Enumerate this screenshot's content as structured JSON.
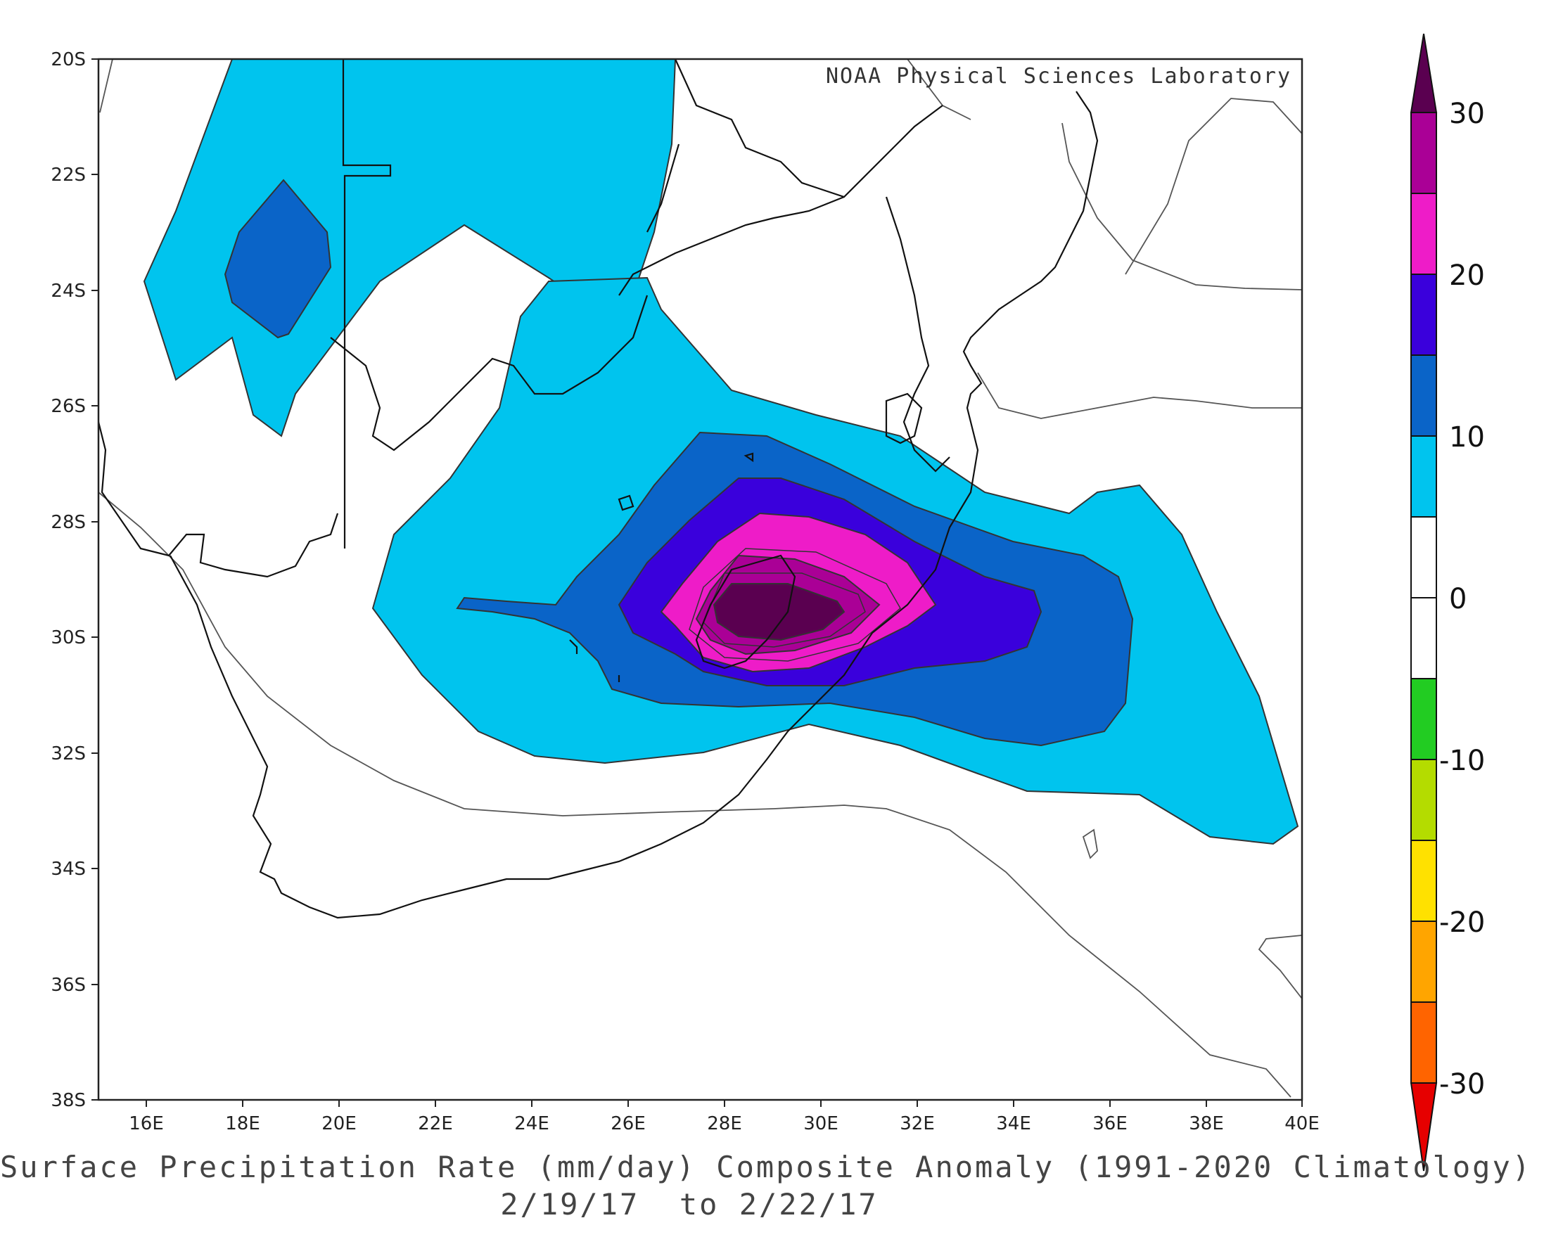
{
  "credit": "NOAA Physical Sciences Laboratory",
  "caption": {
    "line1": "Surface Precipitation Rate (mm/day) Composite Anomaly (1991-2020 Climatology)",
    "line2": "2/19/17  to 2/22/17"
  },
  "axes": {
    "lat_labels": [
      "20S",
      "22S",
      "24S",
      "26S",
      "28S",
      "30S",
      "32S",
      "34S",
      "36S",
      "38S"
    ],
    "lon_labels": [
      "16E",
      "18E",
      "20E",
      "22E",
      "24E",
      "26E",
      "28E",
      "30E",
      "32E",
      "34E",
      "36E",
      "38E",
      "40E"
    ]
  },
  "colorbar": {
    "levels": [
      "30",
      "20",
      "10",
      "0",
      "-10",
      "-20",
      "-30"
    ],
    "colors": [
      "#5a0050",
      "#aa0096",
      "#ee1cc8",
      "#3a00dc",
      "#0a64c8",
      "#00c4ee",
      "#ffffff",
      "#ffffff",
      "#22cc22",
      "#b4dc00",
      "#ffe100",
      "#ffa500",
      "#ff6400",
      "#e60000"
    ]
  },
  "chart_data": {
    "type": "heatmap",
    "title": "Surface Precipitation Rate (mm/day) Composite Anomaly (1991-2020 Climatology)",
    "subtitle": "2/19/17  to 2/22/17",
    "xlabel": "",
    "ylabel": "",
    "lon_range": [
      15,
      40
    ],
    "lat_range": [
      -38,
      -20
    ],
    "units": "mm/day",
    "color_levels": [
      -30,
      -25,
      -20,
      -15,
      -10,
      -5,
      0,
      5,
      10,
      15,
      20,
      25,
      30
    ],
    "max_anomaly_region": {
      "lon": 29,
      "lat": -29.5,
      "value_range": "25-30+"
    }
  }
}
